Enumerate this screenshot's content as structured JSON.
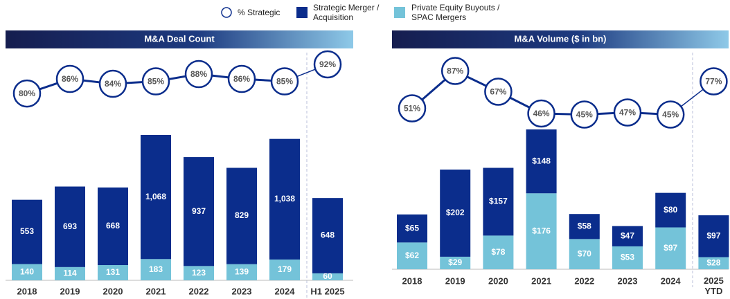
{
  "chart_data": [
    {
      "type": "bar",
      "stacked": true,
      "title": "M&A Deal Count",
      "categories": [
        "2018",
        "2019",
        "2020",
        "2021",
        "2022",
        "2023",
        "2024",
        "H1 2025"
      ],
      "ylim": [
        0,
        1900
      ],
      "y2lim": [
        3,
        94
      ],
      "series": [
        {
          "name": "Strategic Merger / Acquisition",
          "color": "#0b2d8c",
          "values": [
            553,
            693,
            668,
            1068,
            937,
            829,
            1038,
            648
          ],
          "value_labels": [
            "553",
            "693",
            "668",
            "1,068",
            "937",
            "829",
            "1,038",
            "648"
          ]
        },
        {
          "name": "Private Equity Buyouts / SPAC Mergers",
          "color": "#74c3d9",
          "values": [
            140,
            114,
            131,
            183,
            123,
            139,
            179,
            60
          ]
        },
        {
          "name": "% Strategic",
          "type": "line",
          "axis": "y2",
          "color": "#0b2d8c",
          "values": [
            80,
            86,
            84,
            85,
            88,
            86,
            85,
            92
          ],
          "value_labels": [
            "80%",
            "86%",
            "84%",
            "85%",
            "88%",
            "86%",
            "85%",
            "92%"
          ]
        }
      ]
    },
    {
      "type": "bar",
      "stacked": true,
      "title": "M&A Volume ($ in bn)",
      "categories": [
        "2018",
        "2019",
        "2020",
        "2021",
        "2022",
        "2023",
        "2024",
        "2025\nYTD"
      ],
      "ylim": [
        0,
        486
      ],
      "y2lim": [
        -104,
        98
      ],
      "series": [
        {
          "color": "#0b2d8c",
          "values": [
            65,
            202,
            157,
            148,
            58,
            47,
            80,
            97
          ],
          "value_labels": [
            "$65",
            "$202",
            "$157",
            "$148",
            "$58",
            "$47",
            "$80",
            "$97"
          ]
        },
        {
          "color": "#74c3d9",
          "values": [
            62,
            29,
            78,
            176,
            70,
            53,
            97,
            28
          ],
          "value_labels": [
            "$62",
            "$29",
            "$78",
            "$176",
            "$70",
            "$53",
            "$97",
            "$28"
          ]
        },
        {
          "type": "line",
          "axis": "y2",
          "color": "#0b2d8c",
          "values": [
            51,
            87,
            67,
            46,
            45,
            47,
            45,
            77
          ],
          "value_labels": [
            "51%",
            "87%",
            "67%",
            "46%",
            "45%",
            "47%",
            "45%",
            "77%"
          ]
        }
      ]
    }
  ]
}
